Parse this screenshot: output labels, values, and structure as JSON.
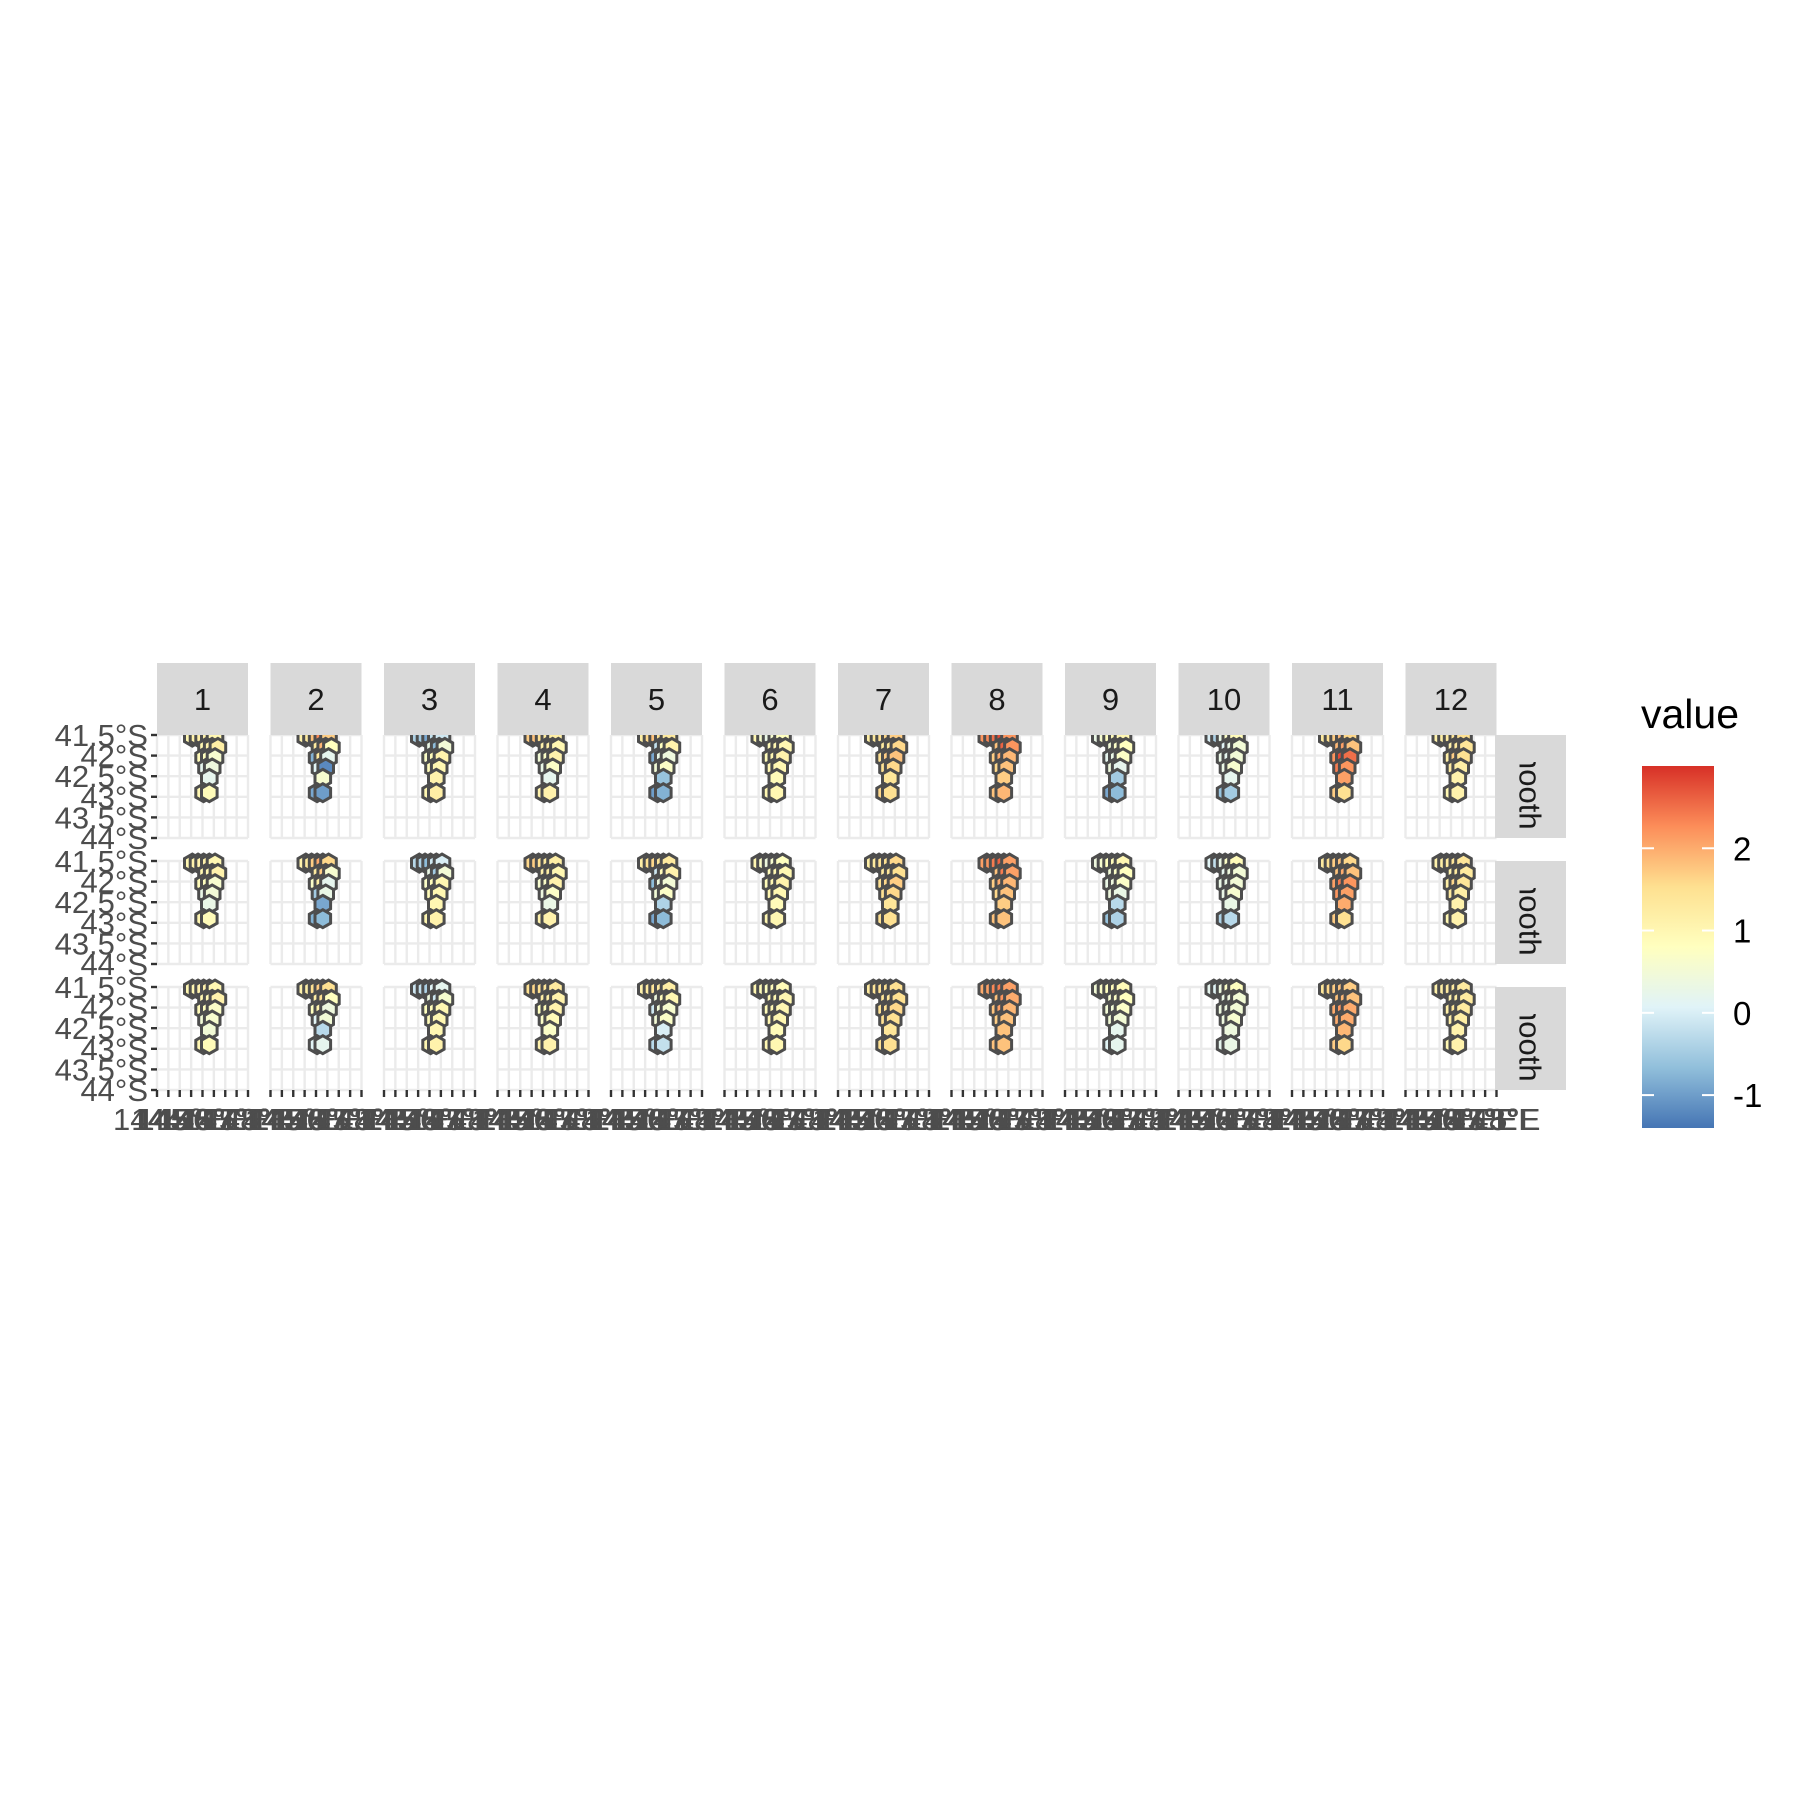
{
  "chart_data": {
    "type": "heatmap",
    "geometry": "hexagon tiles",
    "facet_columns": [
      "1",
      "2",
      "3",
      "4",
      "5",
      "6",
      "7",
      "8",
      "9",
      "10",
      "11",
      "12"
    ],
    "facet_rows": [
      "mooth",
      "mooth",
      "mooth"
    ],
    "y_axis": {
      "tick_labels": [
        "41.5°S",
        "42°S",
        "42.5°S",
        "43°S",
        "43.5°S",
        "44°S"
      ],
      "range": [
        -44,
        -41.5
      ]
    },
    "x_axis": {
      "tick_labels": [
        "144",
        "144.5°E",
        "145°E",
        "145.5°E",
        "146°E",
        "146.5°E",
        "147°E",
        "147.5°E",
        "148°E"
      ]
    },
    "grid": true,
    "legend": {
      "title": "value",
      "position": "right",
      "type": "colorbar",
      "labels": [
        "2",
        "1",
        "0",
        "-1"
      ],
      "range": [
        -1.4,
        3.0
      ],
      "colors": [
        "#4575b4",
        "#91bfdb",
        "#e0f3f8",
        "#ffffbf",
        "#fee090",
        "#fc8d59",
        "#d73027"
      ]
    },
    "hexes": [
      {
        "id": "h1",
        "lon": 145.55,
        "lat": -41.55
      },
      {
        "id": "h2",
        "lon": 145.8,
        "lat": -41.55
      },
      {
        "id": "h3",
        "lon": 146.05,
        "lat": -41.55
      },
      {
        "id": "h4",
        "lon": 146.3,
        "lat": -41.55
      },
      {
        "id": "h5",
        "lon": 146.55,
        "lat": -41.55
      },
      {
        "id": "h6",
        "lon": 146.175,
        "lat": -41.8
      },
      {
        "id": "h7",
        "lon": 146.425,
        "lat": -41.8
      },
      {
        "id": "h8",
        "lon": 146.675,
        "lat": -41.8
      },
      {
        "id": "h9",
        "lon": 146.05,
        "lat": -42.05
      },
      {
        "id": "h10",
        "lon": 146.3,
        "lat": -42.05
      },
      {
        "id": "h11",
        "lon": 146.55,
        "lat": -42.05
      },
      {
        "id": "h12",
        "lon": 146.175,
        "lat": -42.3
      },
      {
        "id": "h13",
        "lon": 146.425,
        "lat": -42.3
      },
      {
        "id": "h14",
        "lon": 146.3,
        "lat": -42.55
      },
      {
        "id": "h15",
        "lon": 146.05,
        "lat": -42.9
      },
      {
        "id": "h16",
        "lon": 146.3,
        "lat": -42.9
      }
    ],
    "series": [
      {
        "panel": "1",
        "row": 1,
        "values": [
          1.0,
          1.1,
          1.2,
          1.1,
          1.0,
          1.0,
          1.1,
          1.2,
          0.9,
          0.8,
          0.6,
          0.2,
          0.4,
          0.2,
          1.0,
          0.9
        ]
      },
      {
        "panel": "2",
        "row": 1,
        "values": [
          1.1,
          1.3,
          1.8,
          2.3,
          1.7,
          1.3,
          1.9,
          0.8,
          -0.8,
          1.3,
          0.2,
          0.1,
          -1.2,
          0.6,
          -0.9,
          -1.0
        ]
      },
      {
        "panel": "3",
        "row": 1,
        "values": [
          -0.4,
          -0.5,
          -0.9,
          -0.2,
          -0.1,
          0.3,
          -0.7,
          0.5,
          0.7,
          0.9,
          1.1,
          0.9,
          1.0,
          1.1,
          1.0,
          1.2
        ]
      },
      {
        "panel": "4",
        "row": 1,
        "values": [
          1.7,
          1.8,
          1.5,
          1.3,
          1.2,
          1.1,
          1.2,
          1.0,
          0.5,
          0.7,
          1.1,
          0.3,
          0.7,
          0.2,
          1.1,
          1.1
        ]
      },
      {
        "panel": "5",
        "row": 1,
        "values": [
          1.2,
          1.6,
          1.8,
          1.5,
          1.3,
          -0.2,
          0.8,
          1.1,
          -0.9,
          0.3,
          0.4,
          0.5,
          0.7,
          -0.6,
          -1.0,
          -0.8
        ]
      },
      {
        "panel": "6",
        "row": 1,
        "values": [
          1.0,
          0.6,
          0.3,
          0.6,
          0.8,
          0.9,
          1.0,
          1.0,
          0.9,
          1.0,
          1.1,
          1.0,
          1.0,
          0.9,
          1.0,
          1.0
        ]
      },
      {
        "panel": "7",
        "row": 1,
        "values": [
          1.2,
          1.3,
          1.5,
          1.6,
          1.7,
          1.3,
          1.4,
          1.6,
          1.5,
          1.7,
          1.8,
          1.5,
          1.6,
          1.4,
          1.6,
          1.5
        ]
      },
      {
        "panel": "8",
        "row": 1,
        "values": [
          2.2,
          2.3,
          2.5,
          2.8,
          2.2,
          1.8,
          2.6,
          2.2,
          1.7,
          2.0,
          1.9,
          1.6,
          1.8,
          1.7,
          1.8,
          1.9
        ]
      },
      {
        "panel": "9",
        "row": 1,
        "values": [
          0.3,
          0.6,
          0.8,
          0.9,
          1.0,
          0.5,
          0.7,
          0.8,
          0.2,
          0.3,
          0.7,
          0.4,
          0.2,
          -0.5,
          -0.9,
          -0.7
        ]
      },
      {
        "panel": "10",
        "row": 1,
        "values": [
          0.0,
          -0.4,
          0.3,
          0.7,
          0.9,
          0.1,
          0.3,
          0.5,
          0.3,
          0.2,
          0.5,
          0.3,
          0.6,
          0.2,
          -0.6,
          -0.5
        ]
      },
      {
        "panel": "11",
        "row": 1,
        "values": [
          1.3,
          1.5,
          1.7,
          1.9,
          1.6,
          1.9,
          2.1,
          1.8,
          2.2,
          2.8,
          2.5,
          2.4,
          2.2,
          2.1,
          1.7,
          1.5
        ]
      },
      {
        "panel": "12",
        "row": 1,
        "values": [
          1.1,
          1.2,
          1.3,
          1.4,
          1.5,
          1.1,
          1.3,
          1.4,
          1.2,
          1.7,
          1.5,
          1.3,
          1.2,
          1.1,
          1.0,
          1.1
        ]
      },
      {
        "panel": "1",
        "row": 2,
        "values": [
          1.0,
          1.1,
          1.1,
          1.1,
          1.0,
          1.0,
          1.0,
          1.1,
          0.9,
          0.8,
          0.6,
          0.3,
          0.5,
          0.3,
          1.0,
          0.9
        ]
      },
      {
        "panel": "2",
        "row": 2,
        "values": [
          1.1,
          1.3,
          1.7,
          2.0,
          1.6,
          1.3,
          1.7,
          0.6,
          0.7,
          1.2,
          0.2,
          -0.5,
          0.3,
          -0.9,
          -0.8,
          -0.7
        ]
      },
      {
        "panel": "3",
        "row": 2,
        "values": [
          -0.3,
          -0.4,
          -0.7,
          -0.1,
          0.0,
          0.3,
          -0.5,
          0.5,
          0.7,
          0.9,
          1.0,
          0.9,
          1.0,
          1.0,
          1.0,
          1.1
        ]
      },
      {
        "panel": "4",
        "row": 2,
        "values": [
          1.6,
          1.7,
          1.5,
          1.3,
          1.2,
          1.1,
          1.2,
          1.0,
          0.6,
          0.7,
          1.1,
          0.4,
          0.7,
          0.3,
          1.1,
          1.1
        ]
      },
      {
        "panel": "5",
        "row": 2,
        "values": [
          1.2,
          1.5,
          1.6,
          1.4,
          1.3,
          -0.1,
          0.9,
          1.1,
          -0.7,
          0.4,
          0.5,
          0.5,
          0.7,
          -0.4,
          -0.9,
          -0.7
        ]
      },
      {
        "panel": "6",
        "row": 2,
        "values": [
          1.0,
          0.7,
          0.4,
          0.6,
          0.8,
          0.9,
          1.0,
          1.0,
          0.9,
          1.0,
          1.1,
          1.0,
          1.0,
          0.9,
          1.0,
          1.0
        ]
      },
      {
        "panel": "7",
        "row": 2,
        "values": [
          1.2,
          1.3,
          1.5,
          1.5,
          1.6,
          1.3,
          1.4,
          1.5,
          1.5,
          1.6,
          1.7,
          1.5,
          1.6,
          1.4,
          1.5,
          1.5
        ]
      },
      {
        "panel": "8",
        "row": 2,
        "values": [
          2.1,
          2.2,
          2.4,
          2.6,
          2.1,
          1.8,
          2.4,
          2.1,
          1.7,
          2.0,
          1.9,
          1.6,
          1.8,
          1.7,
          1.8,
          1.8
        ]
      },
      {
        "panel": "9",
        "row": 2,
        "values": [
          0.4,
          0.6,
          0.8,
          0.9,
          1.0,
          0.5,
          0.7,
          0.8,
          0.3,
          0.4,
          0.7,
          0.4,
          0.3,
          -0.3,
          -0.6,
          -0.4
        ]
      },
      {
        "panel": "10",
        "row": 2,
        "values": [
          0.1,
          -0.2,
          0.3,
          0.7,
          0.9,
          0.2,
          0.4,
          0.5,
          0.3,
          0.3,
          0.5,
          0.3,
          0.6,
          0.3,
          -0.4,
          -0.3
        ]
      },
      {
        "panel": "11",
        "row": 2,
        "values": [
          1.3,
          1.5,
          1.7,
          1.8,
          1.6,
          1.8,
          2.0,
          1.8,
          2.1,
          2.4,
          2.2,
          2.2,
          2.1,
          2.0,
          1.7,
          1.5
        ]
      },
      {
        "panel": "12",
        "row": 2,
        "values": [
          1.1,
          1.2,
          1.3,
          1.4,
          1.4,
          1.1,
          1.3,
          1.3,
          1.2,
          1.6,
          1.4,
          1.3,
          1.2,
          1.1,
          1.0,
          1.1
        ]
      },
      {
        "panel": "1",
        "row": 3,
        "values": [
          1.0,
          1.0,
          1.1,
          1.1,
          1.0,
          1.0,
          1.0,
          1.1,
          0.9,
          0.8,
          0.7,
          0.5,
          0.6,
          0.5,
          1.0,
          0.9
        ]
      },
      {
        "panel": "2",
        "row": 3,
        "values": [
          1.1,
          1.2,
          1.5,
          1.7,
          1.5,
          1.2,
          1.5,
          0.8,
          0.8,
          1.1,
          0.4,
          0.1,
          0.5,
          -0.3,
          0.1,
          0.2
        ]
      },
      {
        "panel": "3",
        "row": 3,
        "values": [
          -0.1,
          -0.2,
          -0.4,
          0.1,
          0.2,
          0.4,
          -0.1,
          0.6,
          0.8,
          0.9,
          1.0,
          0.9,
          1.0,
          1.0,
          1.0,
          1.1
        ]
      },
      {
        "panel": "4",
        "row": 3,
        "values": [
          1.5,
          1.6,
          1.5,
          1.4,
          1.3,
          1.2,
          1.2,
          1.1,
          0.8,
          0.9,
          1.1,
          0.7,
          0.9,
          0.7,
          1.1,
          1.1
        ]
      },
      {
        "panel": "5",
        "row": 3,
        "values": [
          1.1,
          1.3,
          1.4,
          1.3,
          1.2,
          0.4,
          0.9,
          1.0,
          -0.1,
          0.5,
          0.6,
          0.5,
          0.7,
          0.0,
          -0.3,
          -0.2
        ]
      },
      {
        "panel": "6",
        "row": 3,
        "values": [
          1.0,
          0.9,
          0.8,
          0.9,
          0.9,
          1.0,
          1.0,
          1.0,
          0.9,
          1.0,
          1.0,
          1.0,
          1.0,
          0.9,
          1.0,
          1.0
        ]
      },
      {
        "panel": "7",
        "row": 3,
        "values": [
          1.3,
          1.4,
          1.5,
          1.5,
          1.5,
          1.4,
          1.4,
          1.5,
          1.5,
          1.5,
          1.6,
          1.5,
          1.5,
          1.4,
          1.5,
          1.5
        ]
      },
      {
        "panel": "8",
        "row": 3,
        "values": [
          2.0,
          2.1,
          2.3,
          2.4,
          2.1,
          1.8,
          2.2,
          2.0,
          1.8,
          2.1,
          1.9,
          1.7,
          1.8,
          1.8,
          1.8,
          1.8
        ]
      },
      {
        "panel": "9",
        "row": 3,
        "values": [
          0.5,
          0.7,
          0.8,
          0.9,
          0.9,
          0.6,
          0.7,
          0.8,
          0.5,
          0.5,
          0.7,
          0.5,
          0.5,
          0.2,
          0.1,
          0.2
        ]
      },
      {
        "panel": "10",
        "row": 3,
        "values": [
          0.2,
          0.1,
          0.4,
          0.7,
          0.8,
          0.3,
          0.4,
          0.5,
          0.4,
          0.4,
          0.5,
          0.4,
          0.6,
          0.4,
          0.2,
          0.3
        ]
      },
      {
        "panel": "11",
        "row": 3,
        "values": [
          1.4,
          1.6,
          1.7,
          1.8,
          1.7,
          1.8,
          1.9,
          1.8,
          2.0,
          2.2,
          2.0,
          2.0,
          2.0,
          1.9,
          1.7,
          1.6
        ]
      },
      {
        "panel": "12",
        "row": 3,
        "values": [
          1.1,
          1.2,
          1.3,
          1.3,
          1.3,
          1.1,
          1.2,
          1.3,
          1.2,
          1.4,
          1.3,
          1.2,
          1.2,
          1.1,
          1.0,
          1.1
        ]
      }
    ]
  }
}
